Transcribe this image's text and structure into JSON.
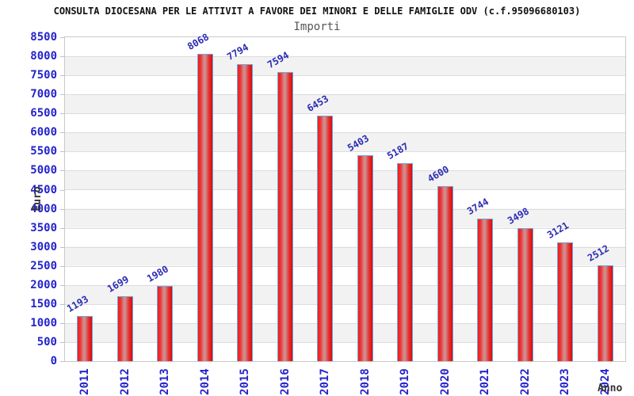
{
  "chart_data": {
    "type": "bar",
    "title": "CONSULTA DIOCESANA PER LE ATTIVIT A FAVORE DEI MINORI E DELLE FAMIGLIE ODV (c.f.95096680103)",
    "subtitle": "Importi",
    "xlabel": "Anno",
    "ylabel": "Euro",
    "categories": [
      "2011",
      "2012",
      "2013",
      "2014",
      "2015",
      "2016",
      "2017",
      "2018",
      "2019",
      "2020",
      "2021",
      "2022",
      "2023",
      "2024"
    ],
    "values": [
      1193,
      1699,
      1980,
      8068,
      7794,
      7594,
      6453,
      5403,
      5187,
      4600,
      3744,
      3498,
      3121,
      2512
    ],
    "yticks": [
      0,
      500,
      1000,
      1500,
      2000,
      2500,
      3000,
      3500,
      4000,
      4500,
      5000,
      5500,
      6000,
      6500,
      7000,
      7500,
      8000,
      8500
    ],
    "ylim": [
      0,
      8500
    ],
    "grid": true,
    "band_shading": true,
    "legend": null,
    "colors": {
      "bar_fill": "#e62020",
      "bar_highlight": "#cf8f8f",
      "bar_border": "#6ea6e0",
      "tick_text": "#2424cc",
      "value_label_text": "#2b2bb6",
      "title_text": "#111111",
      "subtitle_text": "#555555",
      "axis_title_text": "#333333",
      "gridline": "#dcdcdc",
      "band": "#f2f2f2",
      "plot_border": "#c9c9c9",
      "background": "#ffffff"
    }
  }
}
